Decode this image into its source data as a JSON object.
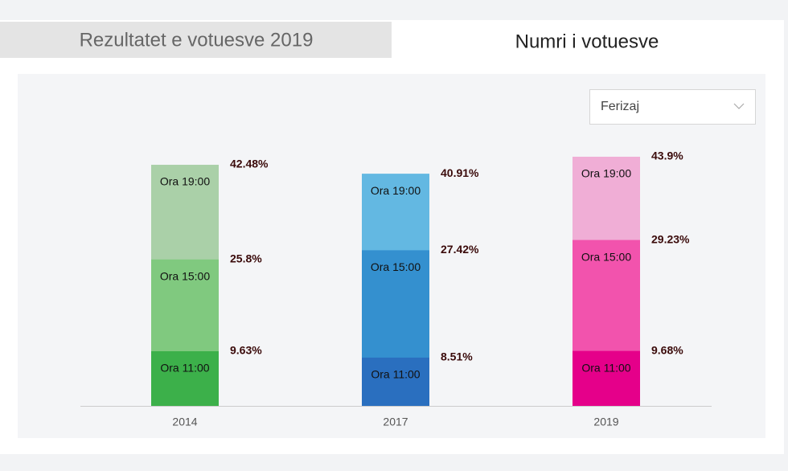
{
  "tabs": [
    "Rezultatet e votuesve 2019",
    "Numri i votuesve"
  ],
  "dropdown": "Ferizaj",
  "chart_data": {
    "type": "bar",
    "categories": [
      "2014",
      "2017",
      "2019"
    ],
    "series": [
      {
        "name": "Ora 11:00",
        "colors": [
          "#3cb04a",
          "#2a6fbf",
          "#e5008a"
        ],
        "values": [
          9.63,
          8.51,
          9.68
        ],
        "value_labels": [
          "9.63%",
          "8.51%",
          "9.68%"
        ]
      },
      {
        "name": "Ora 15:00",
        "colors": [
          "#80c97f",
          "#3490cf",
          "#f253ad"
        ],
        "values": [
          25.8,
          27.42,
          29.23
        ],
        "value_labels": [
          "25.8%",
          "27.42%",
          "29.23%"
        ]
      },
      {
        "name": "Ora 19:00",
        "colors": [
          "#aad0a8",
          "#63b8e2",
          "#f0aed6"
        ],
        "values": [
          42.48,
          40.91,
          43.9
        ],
        "value_labels": [
          "42.48%",
          "40.91%",
          "43.9%"
        ]
      }
    ]
  }
}
